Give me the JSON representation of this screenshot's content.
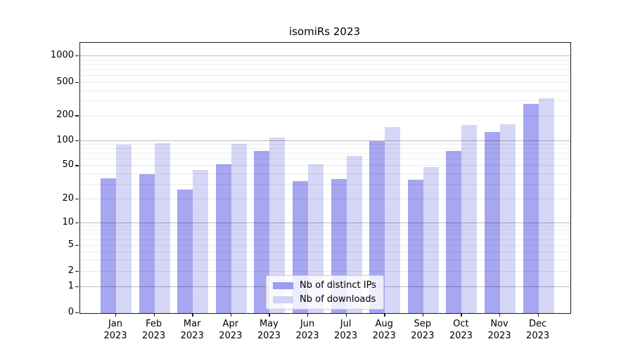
{
  "chart_data": {
    "type": "bar",
    "title": "isomiRs 2023",
    "x_tick_labels": [
      "Jan\n2023",
      "Feb\n2023",
      "Mar\n2023",
      "Apr\n2023",
      "May\n2023",
      "Jun\n2023",
      "Jul\n2023",
      "Aug\n2023",
      "Sep\n2023",
      "Oct\n2023",
      "Nov\n2023",
      "Dec\n2023"
    ],
    "series": [
      {
        "name": "Nb of distinct IPs",
        "color": "#9c9cf0",
        "values": [
          36,
          40,
          26,
          52,
          76,
          33,
          35,
          100,
          34,
          76,
          128,
          278
        ]
      },
      {
        "name": "Nb of downloads",
        "color": "#d2d2f5",
        "values": [
          90,
          95,
          45,
          93,
          110,
          52,
          66,
          147,
          49,
          156,
          160,
          325
        ]
      }
    ],
    "y_tick_labels": [
      "0",
      "1",
      "2",
      "5",
      "10",
      "20",
      "50",
      "100",
      "200",
      "500",
      "1000"
    ],
    "y_scale": "symlog",
    "ylim": [
      0,
      1400
    ],
    "xlabel": "",
    "ylabel": "",
    "grid": true,
    "legend_position": "lower center"
  }
}
